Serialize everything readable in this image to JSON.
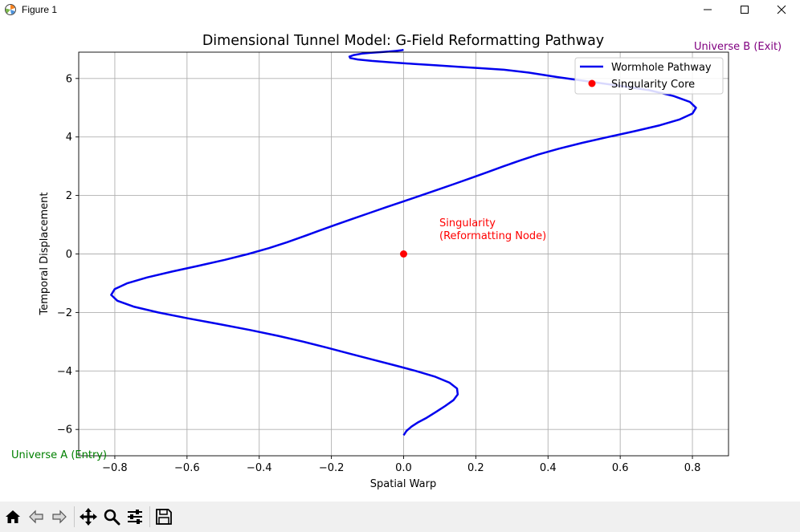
{
  "window": {
    "title": "Figure 1",
    "app_icon": "matplotlib-icon",
    "controls": [
      "minimize-icon",
      "maximize-icon",
      "close-icon"
    ]
  },
  "toolbar": {
    "buttons": [
      "home-icon",
      "back-icon",
      "forward-icon",
      "pan-icon",
      "zoom-icon",
      "configure-subplots-icon",
      "save-icon"
    ]
  },
  "colors": {
    "pathway": "#0000ee",
    "singularity": "#ff0000",
    "universe_a": "#008000",
    "universe_b": "#800080",
    "grid": "#b0b0b0"
  },
  "chart_data": {
    "type": "line",
    "title": "Dimensional Tunnel Model: G-Field Reformatting Pathway",
    "xlabel": "Spatial Warp",
    "ylabel": "Temporal Displacement",
    "xlim": [
      -0.9,
      0.9
    ],
    "ylim": [
      -6.9,
      6.9
    ],
    "xticks": [
      -0.8,
      -0.6,
      -0.4,
      -0.2,
      0.0,
      0.2,
      0.4,
      0.6,
      0.8
    ],
    "xtick_labels": [
      "−0.8",
      "−0.6",
      "−0.4",
      "−0.2",
      "0.0",
      "0.2",
      "0.4",
      "0.6",
      "0.8"
    ],
    "yticks": [
      -6,
      -4,
      -2,
      0,
      2,
      4,
      6
    ],
    "ytick_labels": [
      "−6",
      "−4",
      "−2",
      "0",
      "2",
      "4",
      "6"
    ],
    "grid": true,
    "legend_position": "top-right",
    "series": [
      {
        "name": "Wormhole Pathway",
        "kind": "line",
        "color": "#0000ee",
        "x": [
          0.0,
          0.008,
          0.022,
          0.041,
          0.064,
          0.09,
          0.115,
          0.138,
          0.15,
          0.148,
          0.127,
          0.088,
          0.034,
          -0.027,
          -0.09,
          -0.152,
          -0.214,
          -0.278,
          -0.347,
          -0.425,
          -0.51,
          -0.598,
          -0.68,
          -0.748,
          -0.793,
          -0.81,
          -0.8,
          -0.765,
          -0.71,
          -0.641,
          -0.567,
          -0.495,
          -0.43,
          -0.373,
          -0.323,
          -0.277,
          -0.233,
          -0.188,
          -0.142,
          -0.095,
          -0.048,
          0.0,
          0.048,
          0.095,
          0.142,
          0.188,
          0.233,
          0.277,
          0.323,
          0.373,
          0.43,
          0.495,
          0.567,
          0.641,
          0.71,
          0.765,
          0.8,
          0.81,
          0.793,
          0.748,
          0.68,
          0.598,
          0.51,
          0.425,
          0.347,
          0.278,
          0.214,
          0.152,
          0.09,
          0.027,
          -0.034,
          -0.088,
          -0.127,
          -0.148,
          -0.15,
          -0.138,
          -0.115,
          -0.09,
          -0.064,
          -0.041,
          -0.022,
          -0.008,
          0.0
        ],
        "y": [
          -6.2,
          -6.05,
          -5.9,
          -5.75,
          -5.6,
          -5.4,
          -5.2,
          -5.0,
          -4.8,
          -4.6,
          -4.4,
          -4.2,
          -4.0,
          -3.8,
          -3.6,
          -3.4,
          -3.2,
          -3.0,
          -2.8,
          -2.6,
          -2.4,
          -2.2,
          -2.0,
          -1.8,
          -1.6,
          -1.4,
          -1.2,
          -1.0,
          -0.8,
          -0.6,
          -0.4,
          -0.2,
          0.0,
          0.2,
          0.4,
          0.6,
          0.8,
          1.0,
          1.2,
          1.4,
          1.6,
          1.8,
          2.0,
          2.2,
          2.4,
          2.6,
          2.8,
          3.0,
          3.2,
          3.4,
          3.6,
          3.8,
          4.0,
          4.2,
          4.4,
          4.6,
          4.8,
          5.0,
          5.2,
          5.4,
          5.6,
          5.75,
          5.9,
          6.05,
          6.2,
          6.3,
          6.35,
          6.4,
          6.45,
          6.5,
          6.55,
          6.6,
          6.65,
          6.7,
          6.75,
          6.8,
          6.85,
          6.88,
          6.9,
          6.92,
          6.94,
          6.96,
          6.98
        ]
      },
      {
        "name": "Singularity Core",
        "kind": "point",
        "color": "#ff0000",
        "x": [
          0.0
        ],
        "y": [
          0.0
        ]
      }
    ],
    "annotations": [
      {
        "name": "singularity-annotation",
        "lines": [
          "Singularity",
          "(Reformatting Node)"
        ],
        "x": 0.1,
        "y": 0.7,
        "color": "#ff0000"
      },
      {
        "name": "universe-a-annotation",
        "text": "Universe A (Entry)",
        "x": -1.08,
        "y": -6.85,
        "color": "#008000"
      },
      {
        "name": "universe-b-annotation",
        "text": "Universe B (Exit)",
        "x": 0.8,
        "y": 7.2,
        "color": "#800080"
      }
    ]
  }
}
